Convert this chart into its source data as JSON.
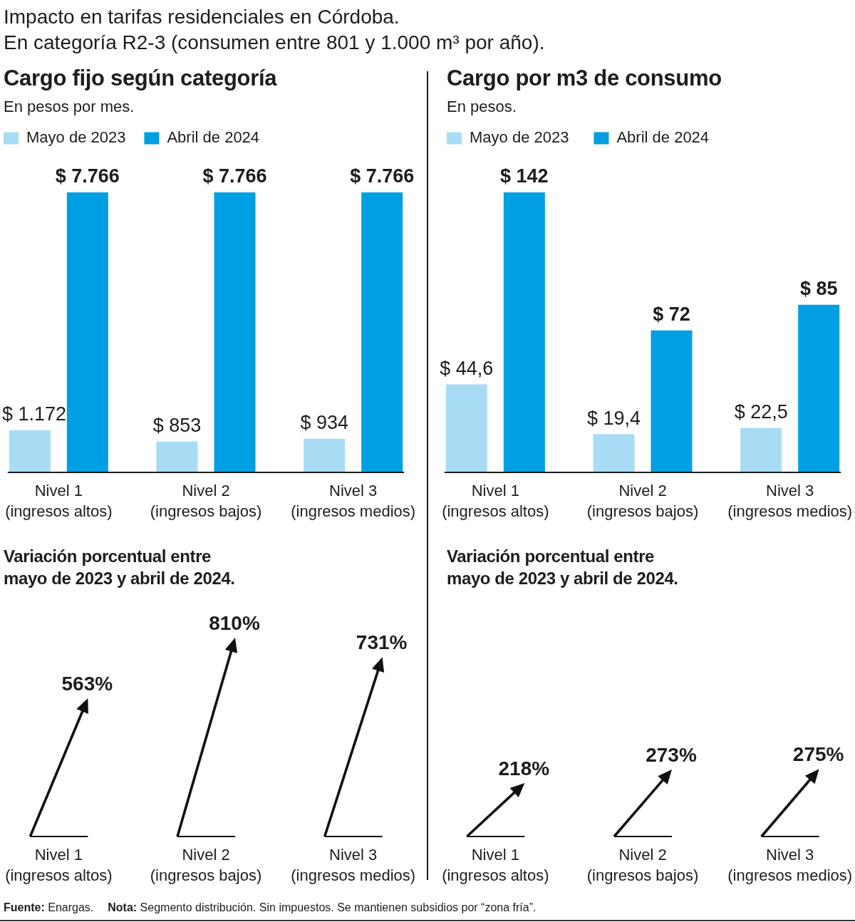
{
  "chart_data": [
    {
      "type": "other",
      "title": "Impacto en tarifas residenciales en Córdoba.",
      "subtitle": "En categoría R2-3 (consumen entre 801 y 1.000 m³ por año).",
      "annotations": [
        "Fuente: Enargas.",
        "Nota: Segmento distribución. Sin impuestos. Se mantienen subsidios por “zona fría”."
      ]
    },
    {
      "type": "bar",
      "title": "Cargo fijo según categoría",
      "subtitle": "En pesos por mes.",
      "categories": [
        "Nivel 1\n(ingresos altos)",
        "Nivel 2\n(ingresos bajos)",
        "Nivel 3\n(ingresos medios)"
      ],
      "series": [
        {
          "name": "Mayo de 2023",
          "color": "#a8dcf5",
          "values": [
            1172,
            853,
            934
          ],
          "value_labels": [
            "$ 1.172",
            "$ 853",
            "$ 934"
          ]
        },
        {
          "name": "Abril de 2024",
          "color": "#009fe3",
          "values": [
            7766,
            7766,
            7766
          ],
          "value_labels": [
            "$ 7.766",
            "$ 7.766",
            "$ 7.766"
          ]
        }
      ],
      "legend": "top left"
    },
    {
      "type": "bar",
      "title": "Cargo por m3 de consumo",
      "subtitle": "En pesos.",
      "categories": [
        "Nivel 1\n(ingresos altos)",
        "Nivel 2\n(ingresos bajos)",
        "Nivel 3\n(ingresos medios)"
      ],
      "series": [
        {
          "name": "Mayo de 2023",
          "color": "#a8dcf5",
          "values": [
            44.6,
            19.4,
            22.5
          ],
          "value_labels": [
            "$ 44,6",
            "$ 19,4",
            "$ 22,5"
          ]
        },
        {
          "name": "Abril de 2024",
          "color": "#009fe3",
          "values": [
            142,
            72,
            85
          ],
          "value_labels": [
            "$ 142",
            "$ 72",
            "$ 85"
          ]
        }
      ],
      "legend": "top left"
    },
    {
      "type": "other",
      "title": "Variación porcentual entre mayo de 2023 y abril de 2024.",
      "categories": [
        "Nivel 1\n(ingresos altos)",
        "Nivel 2\n(ingresos bajos)",
        "Nivel 3\n(ingresos medios)"
      ],
      "values": [
        563,
        810,
        731
      ],
      "value_labels": [
        "563%",
        "810%",
        "731%"
      ],
      "color": "#111111"
    },
    {
      "type": "other",
      "title": "Variación porcentual entre mayo de 2023 y abril de 2024.",
      "categories": [
        "Nivel 1\n(ingresos altos)",
        "Nivel 2\n(ingresos bajos)",
        "Nivel 3\n(ingresos medios)"
      ],
      "values": [
        218,
        273,
        275
      ],
      "value_labels": [
        "218%",
        "273%",
        "275%"
      ],
      "color": "#111111"
    }
  ]
}
